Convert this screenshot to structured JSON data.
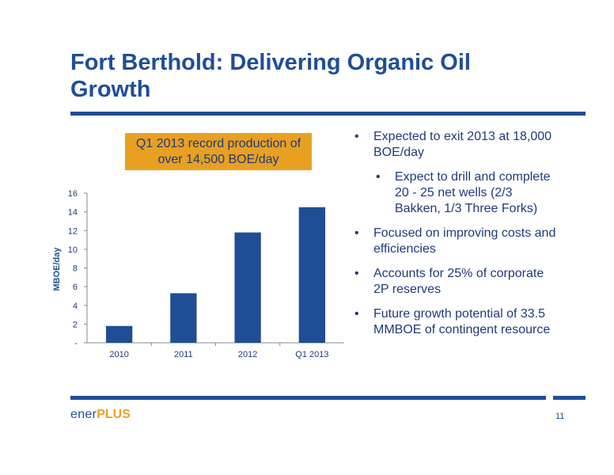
{
  "slide": {
    "title": "Fort Berthold: Delivering Organic Oil Growth",
    "callout": [
      "Q1 2013 record production of",
      "over 14,500 BOE/day"
    ],
    "bullets": [
      {
        "text": "Expected to exit 2013 at 18,000 BOE/day",
        "level": 1
      },
      {
        "text": "Expect to drill and complete 20 - 25 net wells (2/3 Bakken, 1/3 Three Forks)",
        "level": 2
      },
      {
        "text": "Focused on improving costs and efficiencies",
        "level": 1
      },
      {
        "text": "Accounts for 25% of corporate 2P reserves",
        "level": 1
      },
      {
        "text": "Future growth potential of 33.5 MMBOE of contingent resource",
        "level": 1
      }
    ],
    "bullet_char": "•",
    "logo": {
      "part1": "ener",
      "part2": "PLUS"
    },
    "page_number": "11"
  },
  "colors": {
    "primary": "#1f4e96",
    "accent": "#e8a021",
    "text": "#1f3a7a"
  },
  "chart_data": {
    "type": "bar",
    "categories": [
      "2010",
      "2011",
      "2012",
      "Q1 2013"
    ],
    "values": [
      1.8,
      5.3,
      11.8,
      14.5
    ],
    "ylabel": "MBOE/day",
    "ylim": [
      0,
      16
    ],
    "yticks": [
      0,
      2,
      4,
      6,
      8,
      10,
      12,
      14,
      16
    ],
    "ytick_labels": [
      "-",
      "2",
      "4",
      "6",
      "8",
      "10",
      "12",
      "14",
      "16"
    ],
    "bar_color": "#1f4e96",
    "grid": false
  }
}
